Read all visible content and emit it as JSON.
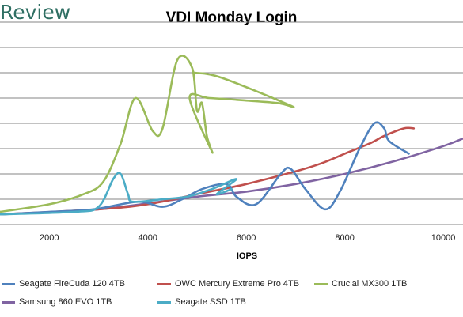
{
  "brand": {
    "logo_text": "Review"
  },
  "chart_data": {
    "type": "line",
    "title": "VDI Monday Login",
    "xlabel": "IOPS",
    "ylabel": "",
    "xlim": [
      1000,
      10400
    ],
    "ylim": [
      0,
      8
    ],
    "grid": true,
    "x_ticks": [
      2000,
      4000,
      6000,
      8000,
      10000
    ],
    "x_tick_labels": [
      "2000",
      "4000",
      "6000",
      "8000",
      "10000"
    ],
    "legend_position": "bottom",
    "series": [
      {
        "name": "Seagate FireCuda 120 4TB",
        "color": "#4f81bd",
        "points": [
          [
            1000,
            0.4
          ],
          [
            2000,
            0.5
          ],
          [
            2900,
            0.6
          ],
          [
            3800,
            0.9
          ],
          [
            4300,
            0.7
          ],
          [
            4700,
            1.0
          ],
          [
            5100,
            1.4
          ],
          [
            5600,
            1.6
          ],
          [
            5800,
            1.1
          ],
          [
            6200,
            0.8
          ],
          [
            6700,
            2.0
          ],
          [
            6900,
            2.2
          ],
          [
            7200,
            1.4
          ],
          [
            7600,
            0.6
          ],
          [
            7900,
            1.3
          ],
          [
            8300,
            3.0
          ],
          [
            8600,
            4.0
          ],
          [
            8800,
            3.8
          ],
          [
            8900,
            3.3
          ],
          [
            9300,
            2.8
          ]
        ]
      },
      {
        "name": "OWC Mercury Extreme Pro 4TB",
        "color": "#c0504d",
        "points": [
          [
            1000,
            0.4
          ],
          [
            3000,
            0.6
          ],
          [
            4000,
            0.8
          ],
          [
            5000,
            1.2
          ],
          [
            6000,
            1.6
          ],
          [
            7000,
            2.1
          ],
          [
            7500,
            2.4
          ],
          [
            8000,
            2.8
          ],
          [
            8500,
            3.2
          ],
          [
            8800,
            3.5
          ],
          [
            9200,
            3.8
          ],
          [
            9400,
            3.8
          ]
        ]
      },
      {
        "name": "Crucial MX300 1TB",
        "color": "#9bbb59",
        "points": [
          [
            1000,
            0.5
          ],
          [
            2000,
            0.8
          ],
          [
            2700,
            1.2
          ],
          [
            3100,
            1.7
          ],
          [
            3450,
            3.2
          ],
          [
            3750,
            5.0
          ],
          [
            4100,
            3.7
          ],
          [
            4300,
            3.8
          ],
          [
            4600,
            6.5
          ],
          [
            4900,
            6.2
          ],
          [
            5000,
            4.5
          ],
          [
            5100,
            4.8
          ],
          [
            5200,
            3.5
          ],
          [
            5300,
            2.9
          ],
          [
            4850,
            5.0
          ],
          [
            5250,
            5.0
          ],
          [
            6000,
            4.9
          ],
          [
            6650,
            4.8
          ],
          [
            6900,
            4.7
          ],
          [
            5500,
            5.8
          ],
          [
            4950,
            6.0
          ]
        ]
      },
      {
        "name": "Samsung 860 EVO 1TB",
        "color": "#8064a2",
        "points": [
          [
            1000,
            0.4
          ],
          [
            3000,
            0.6
          ],
          [
            5000,
            1.1
          ],
          [
            6000,
            1.3
          ],
          [
            7000,
            1.6
          ],
          [
            8000,
            2.0
          ],
          [
            9000,
            2.5
          ],
          [
            10000,
            3.1
          ],
          [
            10400,
            3.4
          ]
        ]
      },
      {
        "name": "Seagate SSD 1TB",
        "color": "#4bacc6",
        "points": [
          [
            1000,
            0.4
          ],
          [
            2500,
            0.5
          ],
          [
            3000,
            0.7
          ],
          [
            3300,
            1.8
          ],
          [
            3450,
            2.0
          ],
          [
            3600,
            1.2
          ],
          [
            3700,
            0.9
          ],
          [
            4300,
            1.0
          ],
          [
            4800,
            1.1
          ],
          [
            5300,
            1.4
          ],
          [
            5800,
            1.8
          ],
          [
            5400,
            1.2
          ],
          [
            5700,
            1.4
          ]
        ]
      }
    ]
  }
}
